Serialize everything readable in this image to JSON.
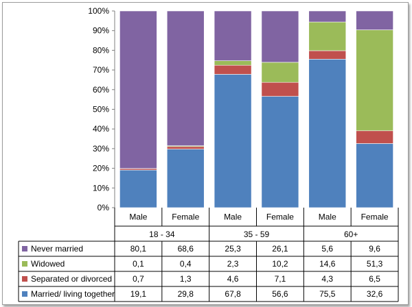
{
  "chart_data": {
    "type": "bar",
    "stacked": true,
    "percent": true,
    "title": "",
    "xlabel": "",
    "ylabel": "",
    "ylim": [
      0,
      100
    ],
    "yticks": [
      "0%",
      "10%",
      "20%",
      "30%",
      "40%",
      "50%",
      "60%",
      "70%",
      "80%",
      "90%",
      "100%"
    ],
    "groups": [
      {
        "label": "18 - 34",
        "categories": [
          "Male",
          "Female"
        ]
      },
      {
        "label": "35 - 59",
        "categories": [
          "Male",
          "Female"
        ]
      },
      {
        "label": "60+",
        "categories": [
          "Male",
          "Female"
        ]
      }
    ],
    "series": [
      {
        "name": "Married/ living together",
        "color": "#4F81BD",
        "values": [
          19.1,
          29.8,
          67.8,
          56.6,
          75.5,
          32.6
        ],
        "labels": [
          "19,1",
          "29,8",
          "67,8",
          "56,6",
          "75,5",
          "32,6"
        ]
      },
      {
        "name": "Separated or divorced",
        "color": "#C0504D",
        "values": [
          0.7,
          1.3,
          4.6,
          7.1,
          4.3,
          6.5
        ],
        "labels": [
          "0,7",
          "1,3",
          "4,6",
          "7,1",
          "4,3",
          "6,5"
        ]
      },
      {
        "name": "Widowed",
        "color": "#9BBB59",
        "values": [
          0.1,
          0.4,
          2.3,
          10.2,
          14.6,
          51.3
        ],
        "labels": [
          "0,1",
          "0,4",
          "2,3",
          "10,2",
          "14,6",
          "51,3"
        ]
      },
      {
        "name": "Never married",
        "color": "#8064A2",
        "values": [
          80.1,
          68.6,
          25.3,
          26.1,
          5.6,
          9.6
        ],
        "labels": [
          "80,1",
          "68,6",
          "25,3",
          "26,1",
          "5,6",
          "9,6"
        ]
      }
    ],
    "table_row_order": [
      "Never married",
      "Widowed",
      "Separated or divorced",
      "Married/ living together"
    ],
    "legend_position": "data-table-left"
  }
}
